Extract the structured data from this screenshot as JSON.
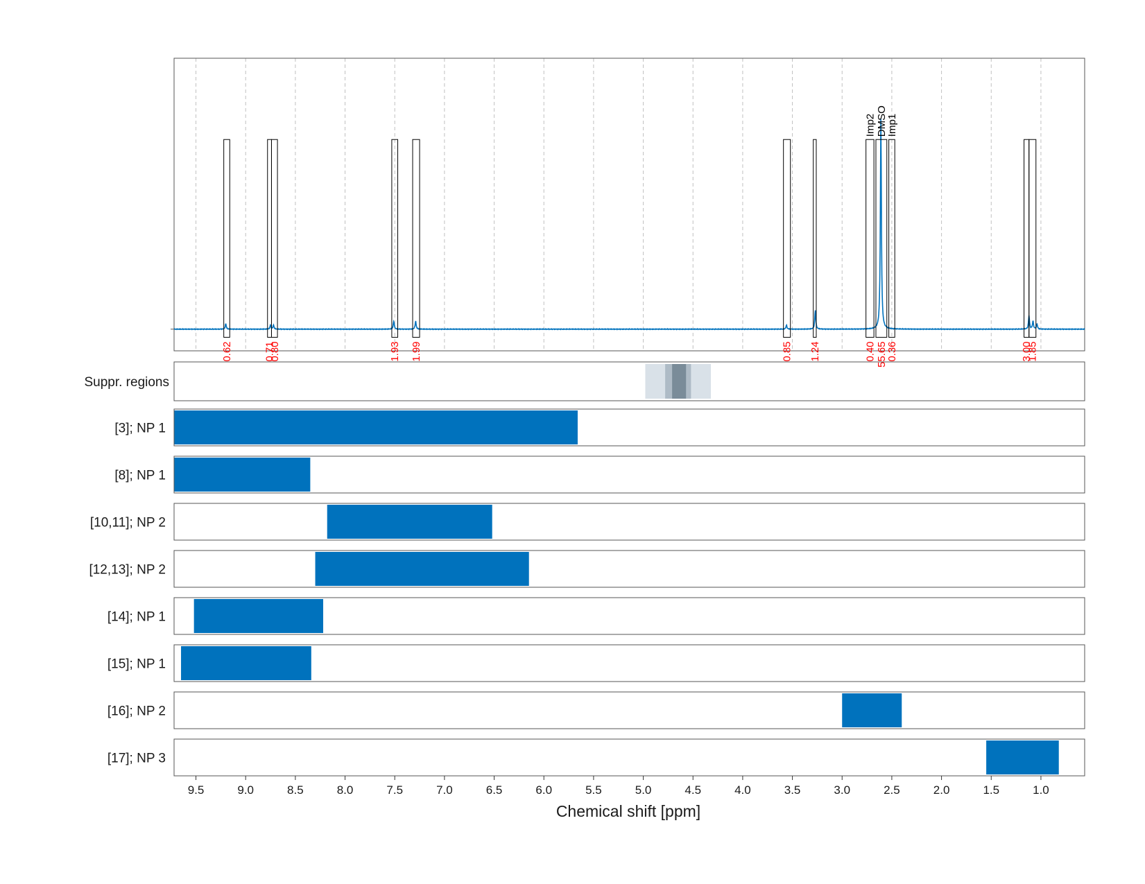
{
  "chart_data": {
    "type": "nmr-spectrum-with-region-tracks",
    "xlabel": "Chemical shift [ppm]",
    "xlim": [
      9.72,
      0.56
    ],
    "x_ticks": [
      "9.5",
      "9.0",
      "8.5",
      "8.0",
      "7.5",
      "7.0",
      "6.5",
      "6.0",
      "5.5",
      "5.0",
      "4.5",
      "4.0",
      "3.5",
      "3.0",
      "2.5",
      "2.0",
      "1.5",
      "1.0"
    ],
    "grid": true,
    "spectrum": {
      "color": "#0072bd",
      "baseline": 0,
      "ylim": [
        -0.08,
        1.0
      ],
      "peaks": [
        {
          "ppm": 9.2,
          "height": 0.02
        },
        {
          "ppm": 8.75,
          "height": 0.015
        },
        {
          "ppm": 8.72,
          "height": 0.015
        },
        {
          "ppm": 7.51,
          "height": 0.03
        },
        {
          "ppm": 7.29,
          "height": 0.03
        },
        {
          "ppm": 3.56,
          "height": 0.015
        },
        {
          "ppm": 3.27,
          "height": 0.07
        },
        {
          "ppm": 2.61,
          "height": 0.78
        },
        {
          "ppm": 1.12,
          "height": 0.05
        },
        {
          "ppm": 1.08,
          "height": 0.03
        },
        {
          "ppm": 1.04,
          "height": 0.02
        }
      ]
    },
    "integrals": [
      {
        "from": 9.22,
        "to": 9.16,
        "label": "0.62"
      },
      {
        "from": 8.78,
        "to": 8.74,
        "label": "0.71"
      },
      {
        "from": 8.74,
        "to": 8.68,
        "label": "0.80"
      },
      {
        "from": 7.53,
        "to": 7.47,
        "label": "1.93"
      },
      {
        "from": 7.32,
        "to": 7.25,
        "label": "1.99"
      },
      {
        "from": 3.59,
        "to": 3.52,
        "label": "0.85"
      },
      {
        "from": 3.29,
        "to": 3.26,
        "label": "1.24"
      },
      {
        "from": 2.76,
        "to": 2.68,
        "label": "0.40",
        "annotation": "Imp2"
      },
      {
        "from": 2.66,
        "to": 2.55,
        "label": "55.65",
        "annotation": "DMSO"
      },
      {
        "from": 2.53,
        "to": 2.47,
        "label": "0.36",
        "annotation": "Imp1"
      },
      {
        "from": 1.17,
        "to": 1.12,
        "label": "3.00"
      },
      {
        "from": 1.12,
        "to": 1.05,
        "label": "1.85"
      }
    ],
    "suppression": {
      "label": "Suppr. regions",
      "bands": [
        {
          "from": 4.98,
          "to": 4.32,
          "color": "#d9e1e8"
        },
        {
          "from": 4.78,
          "to": 4.52,
          "color": "#aebbc6"
        },
        {
          "from": 4.71,
          "to": 4.57,
          "color": "#7a8c99"
        }
      ]
    },
    "tracks": [
      {
        "label": "[3]; NP 1",
        "from": 9.72,
        "to": 5.66
      },
      {
        "label": "[8]; NP 1",
        "from": 9.72,
        "to": 8.35
      },
      {
        "label": "[10,11]; NP 2",
        "from": 8.18,
        "to": 6.52
      },
      {
        "label": "[12,13]; NP 2",
        "from": 8.3,
        "to": 6.15
      },
      {
        "label": "[14]; NP 1",
        "from": 9.52,
        "to": 8.22
      },
      {
        "label": "[15]; NP 1",
        "from": 9.65,
        "to": 8.34
      },
      {
        "label": "[16]; NP 2",
        "from": 3.0,
        "to": 2.4
      },
      {
        "label": "[17]; NP 3",
        "from": 1.55,
        "to": 0.82
      }
    ],
    "colors": {
      "bar": "#0072bd",
      "integral_label": "#ff0000",
      "grid": "#c0c0c0",
      "frame": "#555555"
    }
  }
}
